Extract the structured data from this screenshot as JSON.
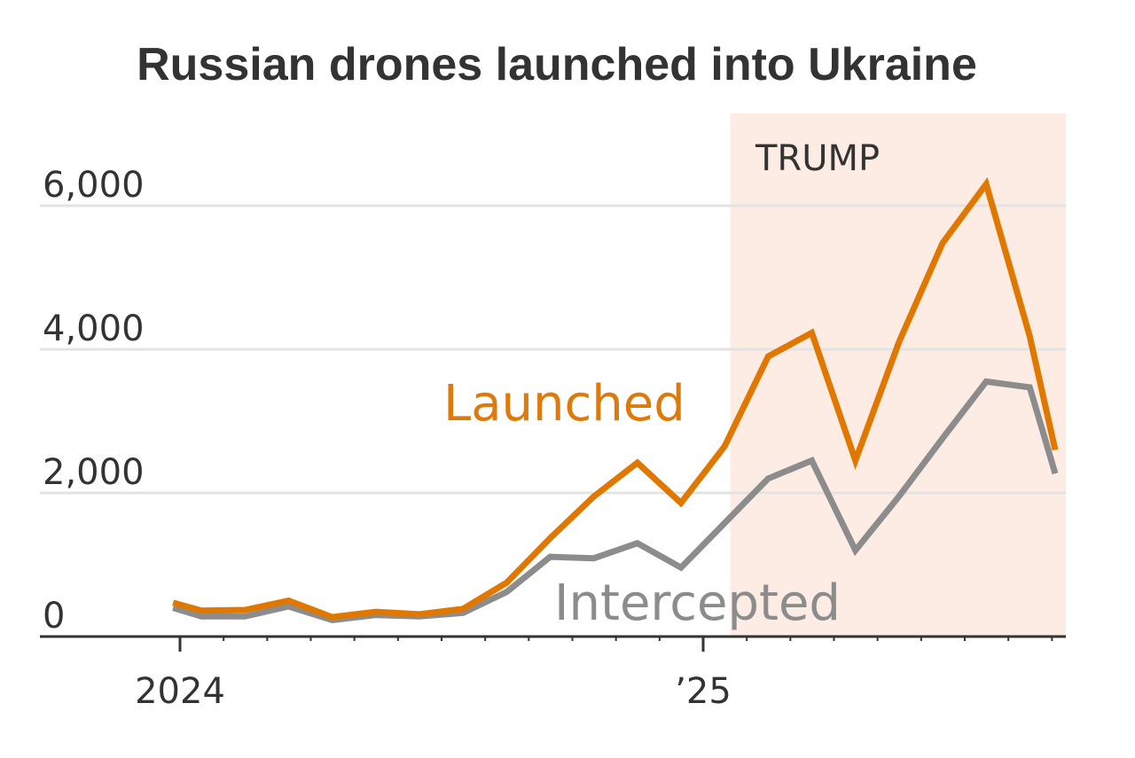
{
  "chart_data": {
    "type": "line",
    "title": "Russian drones launched into Ukraine",
    "xlabel": "",
    "ylabel": "",
    "x": [
      "2023-12",
      "2024-01",
      "2024-02",
      "2024-03",
      "2024-04",
      "2024-05",
      "2024-06",
      "2024-07",
      "2024-08",
      "2024-09",
      "2024-10",
      "2024-11",
      "2024-12",
      "2025-01",
      "2025-02",
      "2025-03",
      "2025-04",
      "2025-05",
      "2025-06",
      "2025-07",
      "2025-08",
      "2025-09"
    ],
    "series": [
      {
        "name": "Launched",
        "color": "#e07800",
        "values": [
          470,
          360,
          370,
          500,
          270,
          345,
          310,
          385,
          750,
          1370,
          1950,
          2420,
          1860,
          2650,
          3900,
          4230,
          2450,
          4100,
          5480,
          6300,
          4180,
          2600
        ]
      },
      {
        "name": "Intercepted",
        "color": "#8c8c8c",
        "values": [
          400,
          280,
          280,
          420,
          230,
          300,
          280,
          330,
          620,
          1110,
          1090,
          1300,
          960,
          1580,
          2200,
          2450,
          1200,
          1950,
          2760,
          3550,
          3470,
          2270
        ]
      }
    ],
    "ylim": [
      0,
      6800
    ],
    "yticks": [
      0,
      2000,
      4000,
      6000
    ],
    "ytick_labels": [
      "0",
      "2,000",
      "4,000",
      "6,000"
    ],
    "xticks": [
      {
        "date": "2024-01",
        "label": "2024"
      },
      {
        "date": "2025-01",
        "label": "’25"
      }
    ],
    "xlim": [
      "2023-12",
      "2025-09"
    ],
    "grid": "horizontal",
    "legend": "inline labels",
    "annotation": {
      "label": "TRUMP",
      "start": "2025-01-20",
      "fill": "#fcece3"
    }
  }
}
